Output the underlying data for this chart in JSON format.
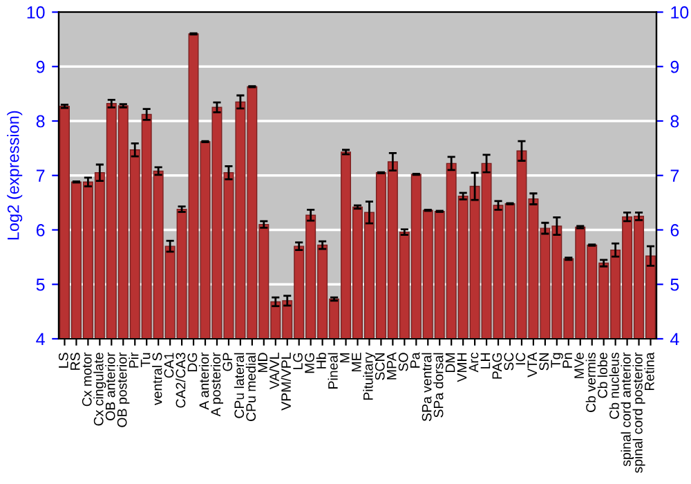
{
  "chart_data": {
    "type": "bar",
    "ylabel": "Log2 (expression)",
    "categories": [
      "LS",
      "RS",
      "Cx motor",
      "Cx cingulate",
      "OB anterior",
      "OB posterior",
      "Pir",
      "Tu",
      "ventral S",
      "CA1",
      "CA2/CA3",
      "DG",
      "A anterior",
      "A posterior",
      "GP",
      "CPu lateral",
      "CPu medial",
      "MD",
      "VA/VL",
      "VPM/VPL",
      "LG",
      "MG",
      "Hb",
      "Pineal",
      "M",
      "ME",
      "Pituitary",
      "SCN",
      "MPA",
      "SO",
      "Pa",
      "SPa ventral",
      "SPa dorsal",
      "DM",
      "VMH",
      "Arc",
      "LH",
      "PAG",
      "SC",
      "IC",
      "VTA",
      "SN",
      "Tg",
      "Pn",
      "MVe",
      "Cb vermis",
      "Cb lobe",
      "Cb nucleus",
      "spinal cord anterior",
      "spinal cord posterior",
      "Retina"
    ],
    "values": [
      8.27,
      6.88,
      6.88,
      7.05,
      8.32,
      8.28,
      7.47,
      8.12,
      7.08,
      5.7,
      6.38,
      9.6,
      7.62,
      8.25,
      7.05,
      8.35,
      8.63,
      6.1,
      4.68,
      4.7,
      5.7,
      6.27,
      5.72,
      4.73,
      7.43,
      6.42,
      6.32,
      7.05,
      7.25,
      5.96,
      7.02,
      6.36,
      6.34,
      7.22,
      6.62,
      6.8,
      7.22,
      6.45,
      6.48,
      7.45,
      6.57,
      6.03,
      6.07,
      5.47,
      6.05,
      5.72,
      5.39,
      5.63,
      6.24,
      6.25,
      5.52
    ],
    "errors": [
      0.03,
      0.01,
      0.08,
      0.15,
      0.07,
      0.03,
      0.12,
      0.1,
      0.07,
      0.1,
      0.05,
      0.01,
      0.01,
      0.09,
      0.12,
      0.12,
      0.01,
      0.06,
      0.08,
      0.09,
      0.07,
      0.1,
      0.07,
      0.03,
      0.04,
      0.03,
      0.2,
      0.01,
      0.16,
      0.05,
      0.01,
      0.01,
      0.01,
      0.12,
      0.06,
      0.25,
      0.16,
      0.08,
      0.01,
      0.18,
      0.1,
      0.1,
      0.16,
      0.02,
      0.02,
      0.01,
      0.06,
      0.12,
      0.08,
      0.07,
      0.18
    ],
    "color": "#b83232",
    "ylim": [
      4,
      10
    ],
    "yticks": [
      4,
      5,
      6,
      7,
      8,
      9,
      10
    ],
    "y2lim": [
      4,
      10
    ],
    "y2ticks": [
      4,
      5,
      6,
      7,
      8,
      9,
      10
    ],
    "grid": "y",
    "legend": false
  }
}
